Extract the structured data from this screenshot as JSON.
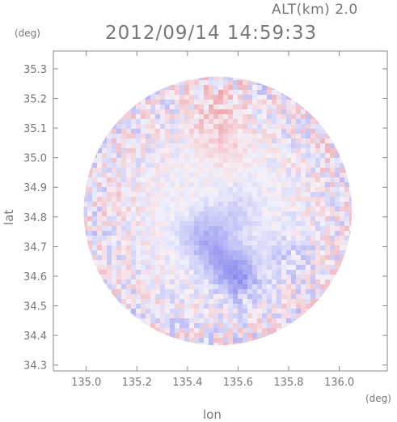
{
  "header": {
    "altitude_label": "ALT(km) 2.0",
    "timestamp": "2012/09/14 14:59:33",
    "y_unit": "(deg)",
    "x_unit": "(deg)"
  },
  "chart_data": {
    "type": "heatmap",
    "title": "2012/09/14 14:59:33",
    "subtitle": "ALT(km) 2.0",
    "xlabel": "lon",
    "ylabel": "lat",
    "x_unit": "(deg)",
    "y_unit": "(deg)",
    "xlim": [
      134.87,
      136.19
    ],
    "ylim": [
      34.28,
      35.36
    ],
    "xticks": [
      135.0,
      135.2,
      135.4,
      135.6,
      135.8,
      136.0
    ],
    "yticks": [
      34.3,
      34.4,
      34.5,
      34.6,
      34.7,
      34.8,
      34.9,
      35.0,
      35.1,
      35.2,
      35.3
    ],
    "xtick_labels": [
      "135.0",
      "135.2",
      "135.4",
      "135.6",
      "135.8",
      "136.0"
    ],
    "ytick_labels": [
      "34.3",
      "34.4",
      "34.5",
      "34.6",
      "34.7",
      "34.8",
      "34.9",
      "35.0",
      "35.1",
      "35.2",
      "35.3"
    ],
    "coverage": {
      "center_lon": 135.52,
      "center_lat": 34.82,
      "radius_deg": 0.53
    },
    "positive_color": "#f2a0a0",
    "negative_color": "#8c8cf0",
    "regions": [
      {
        "lon": 135.45,
        "lat": 34.74,
        "value": -0.55
      },
      {
        "lon": 135.6,
        "lat": 34.6,
        "value": -0.7
      },
      {
        "lon": 135.53,
        "lat": 34.66,
        "value": -0.5
      },
      {
        "lon": 135.78,
        "lat": 34.68,
        "value": -0.3
      },
      {
        "lon": 135.58,
        "lat": 34.82,
        "value": -0.3
      },
      {
        "lon": 135.52,
        "lat": 35.22,
        "value": 0.35
      },
      {
        "lon": 135.55,
        "lat": 35.06,
        "value": 0.3
      },
      {
        "lon": 135.45,
        "lat": 35.12,
        "value": 0.2
      },
      {
        "lon": 135.15,
        "lat": 34.85,
        "value": 0.15
      },
      {
        "lon": 135.95,
        "lat": 35.05,
        "value": 0.1
      }
    ],
    "grid": false,
    "legend": "none"
  }
}
